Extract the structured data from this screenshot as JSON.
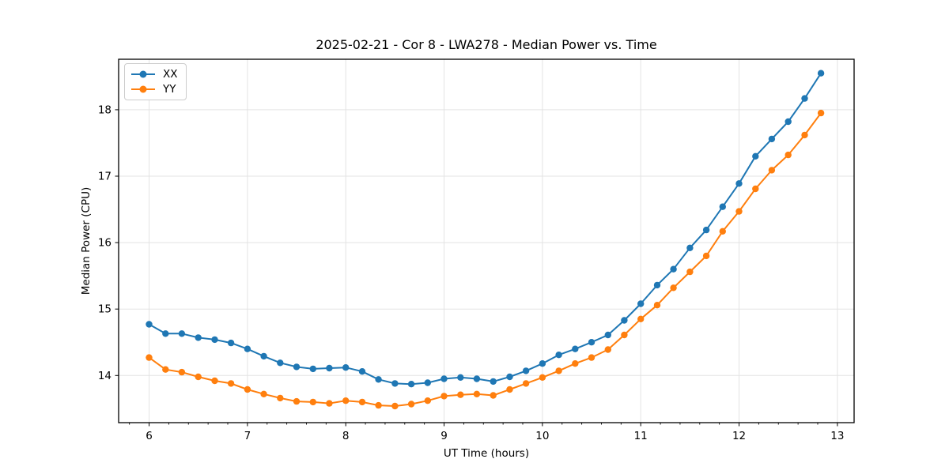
{
  "chart_data": {
    "type": "line",
    "title": "2025-02-21 - Cor 8 - LWA278 - Median Power vs. Time",
    "xlabel": "UT Time (hours)",
    "ylabel": "Median Power (CPU)",
    "xlim": [
      5.69,
      13.17
    ],
    "ylim": [
      13.29,
      18.76
    ],
    "x_ticks": [
      6,
      7,
      8,
      9,
      10,
      11,
      12,
      13
    ],
    "y_ticks": [
      14,
      15,
      16,
      17,
      18
    ],
    "x_minor_tick_step": 0.2,
    "grid": true,
    "grid_color": "#e3e3e3",
    "legend_position": "upper left",
    "background_color": "#ffffff",
    "x": [
      6.0,
      6.167,
      6.333,
      6.5,
      6.667,
      6.833,
      7.0,
      7.167,
      7.333,
      7.5,
      7.667,
      7.833,
      8.0,
      8.167,
      8.333,
      8.5,
      8.667,
      8.833,
      9.0,
      9.167,
      9.333,
      9.5,
      9.667,
      9.833,
      10.0,
      10.167,
      10.333,
      10.5,
      10.667,
      10.833,
      11.0,
      11.167,
      11.333,
      11.5,
      11.667,
      11.833,
      12.0,
      12.167,
      12.333,
      12.5,
      12.667,
      12.833
    ],
    "series": [
      {
        "name": "XX",
        "color": "#1f77b4",
        "marker": "circle",
        "values": [
          14.77,
          14.63,
          14.63,
          14.57,
          14.54,
          14.49,
          14.4,
          14.29,
          14.19,
          14.13,
          14.1,
          14.11,
          14.12,
          14.06,
          13.94,
          13.88,
          13.87,
          13.89,
          13.95,
          13.97,
          13.95,
          13.91,
          13.98,
          14.07,
          14.18,
          14.31,
          14.4,
          14.5,
          14.61,
          14.83,
          15.08,
          15.36,
          15.6,
          15.92,
          16.19,
          16.54,
          16.89,
          17.3,
          17.56,
          17.82,
          18.17,
          18.55
        ]
      },
      {
        "name": "YY",
        "color": "#ff7f0e",
        "marker": "circle",
        "values": [
          14.27,
          14.09,
          14.05,
          13.98,
          13.92,
          13.88,
          13.79,
          13.72,
          13.66,
          13.61,
          13.6,
          13.58,
          13.62,
          13.6,
          13.55,
          13.54,
          13.57,
          13.62,
          13.69,
          13.71,
          13.72,
          13.7,
          13.79,
          13.88,
          13.97,
          14.07,
          14.18,
          14.27,
          14.39,
          14.61,
          14.85,
          15.06,
          15.32,
          15.56,
          15.8,
          16.17,
          16.47,
          16.81,
          17.09,
          17.32,
          17.62,
          17.95
        ]
      }
    ]
  }
}
